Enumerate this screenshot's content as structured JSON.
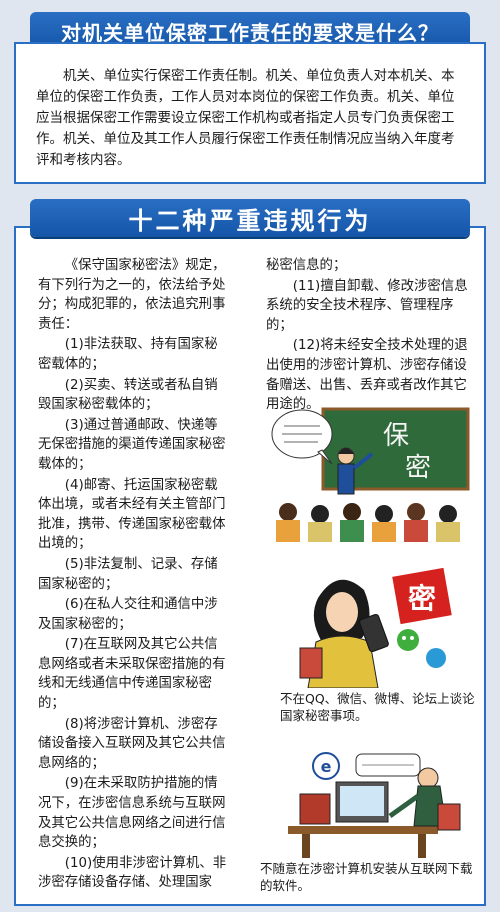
{
  "banner1": "对机关单位保密工作责任的要求是什么？",
  "intro": "机关、单位实行保密工作责任制。机关、单位负责人对本机关、本单位的保密工作负责，工作人员对本岗位的保密工作负责。机关、单位应当根据保密工作需要设立保密工作机构或者指定人员专门负责保密工作。机关、单位及其工作人员履行保密工作责任制情况应当纳入年度考评和考核内容。",
  "banner2": "十二种严重违规行为",
  "lead": "《保守国家秘密法》规定，有下列行为之一的，依法给予处分；构成犯罪的，依法追究刑事责任：",
  "items_left": [
    "(1)非法获取、持有国家秘密载体的；",
    "(2)买卖、转送或者私自销毁国家秘密载体的；",
    "(3)通过普通邮政、快递等无保密措施的渠道传递国家秘密载体的；",
    "(4)邮寄、托运国家秘密载体出境，或者未经有关主管部门批准，携带、传递国家秘密载体出境的；",
    "(5)非法复制、记录、存储国家秘密的；",
    "(6)在私人交往和通信中涉及国家秘密的；",
    "(7)在互联网及其它公共信息网络或者未采取保密措施的有线和无线通信中传递国家秘密的；",
    "(8)将涉密计算机、涉密存储设备接入互联网及其它公共信息网络的；",
    "(9)在未采取防护措施的情况下，在涉密信息系统与互联网及其它公共信息网络之间进行信息交换的；",
    "(10)使用非涉密计算机、非涉密存储设备存储、处理国家"
  ],
  "items_right": [
    "秘密信息的；",
    "(11)擅自卸载、修改涉密信息系统的安全技术程序、管理程序的；",
    "(12)将未经安全技术处理的退出使用的涉密计算机、涉密存储设备赠送、出售、丢弃或者改作其它用途的。"
  ],
  "board_text": "保密",
  "seal_text": "密",
  "caption1": "不在QQ、微信、微博、论坛上谈论国家秘密事项。",
  "caption2": "不随意在涉密计算机安装从互联网下载的软件。",
  "colors": {
    "banner": "#1455a8",
    "border": "#2a6fc4",
    "background": "#dfe6ef",
    "board": "#2f6a3a",
    "seal": "#d6221e"
  }
}
